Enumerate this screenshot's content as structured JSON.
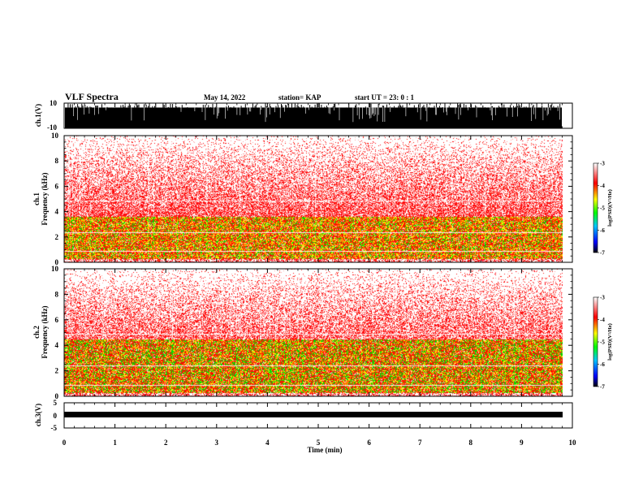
{
  "header": {
    "title": "VLF Spectra",
    "date": "May 14, 2022",
    "station": "station= KAP",
    "start": "start  UT =   23: 0  : 1"
  },
  "chart_data": [
    {
      "type": "line",
      "name": "ch1-waveform",
      "ylabel": "ch.1(V)",
      "ylim": [
        -10,
        10
      ],
      "yticks": [
        "10",
        "-10"
      ],
      "xlim": [
        0,
        10
      ]
    },
    {
      "type": "heatmap",
      "name": "ch1-spectrogram",
      "ylabel": "ch.1\nFrequency (kHz)",
      "ylabel_lines": [
        "ch.1",
        "Frequency (kHz)"
      ],
      "ylim": [
        0,
        10
      ],
      "yticks": [
        "0",
        "2",
        "4",
        "6",
        "8",
        "10"
      ],
      "xlim": [
        0,
        9.8
      ],
      "colorbar": {
        "ticks": [
          "-3",
          "-4",
          "-5",
          "-6",
          "-7"
        ],
        "label": "log(PSD)(V²/Hz)",
        "range": [
          -7,
          -3
        ]
      }
    },
    {
      "type": "heatmap",
      "name": "ch2-spectrogram",
      "ylabel_lines": [
        "ch.2",
        "Frequency (kHz)"
      ],
      "ylim": [
        0,
        10
      ],
      "yticks": [
        "0",
        "2",
        "4",
        "6",
        "8",
        "10"
      ],
      "xlim": [
        0,
        9.8
      ],
      "colorbar": {
        "ticks": [
          "-3",
          "-4",
          "-5",
          "-6",
          "-7"
        ],
        "label": "log(PSD)(V²/Hz)",
        "range": [
          -7,
          -3
        ]
      }
    },
    {
      "type": "line",
      "name": "ch3-waveform",
      "ylabel": "ch.3(V)",
      "ylim": [
        -5,
        5
      ],
      "yticks": [
        "5",
        "0",
        "-5"
      ],
      "xlim": [
        0,
        10
      ]
    }
  ],
  "xaxis": {
    "label": "Time  (min)",
    "ticks": [
      "0",
      "1",
      "2",
      "3",
      "4",
      "5",
      "6",
      "7",
      "8",
      "9",
      "10"
    ],
    "range": [
      0,
      10
    ]
  },
  "colors": {
    "low": "#0000ff",
    "mid": "#00ff00",
    "high": "#ff0000",
    "bg": "#ffffff"
  }
}
